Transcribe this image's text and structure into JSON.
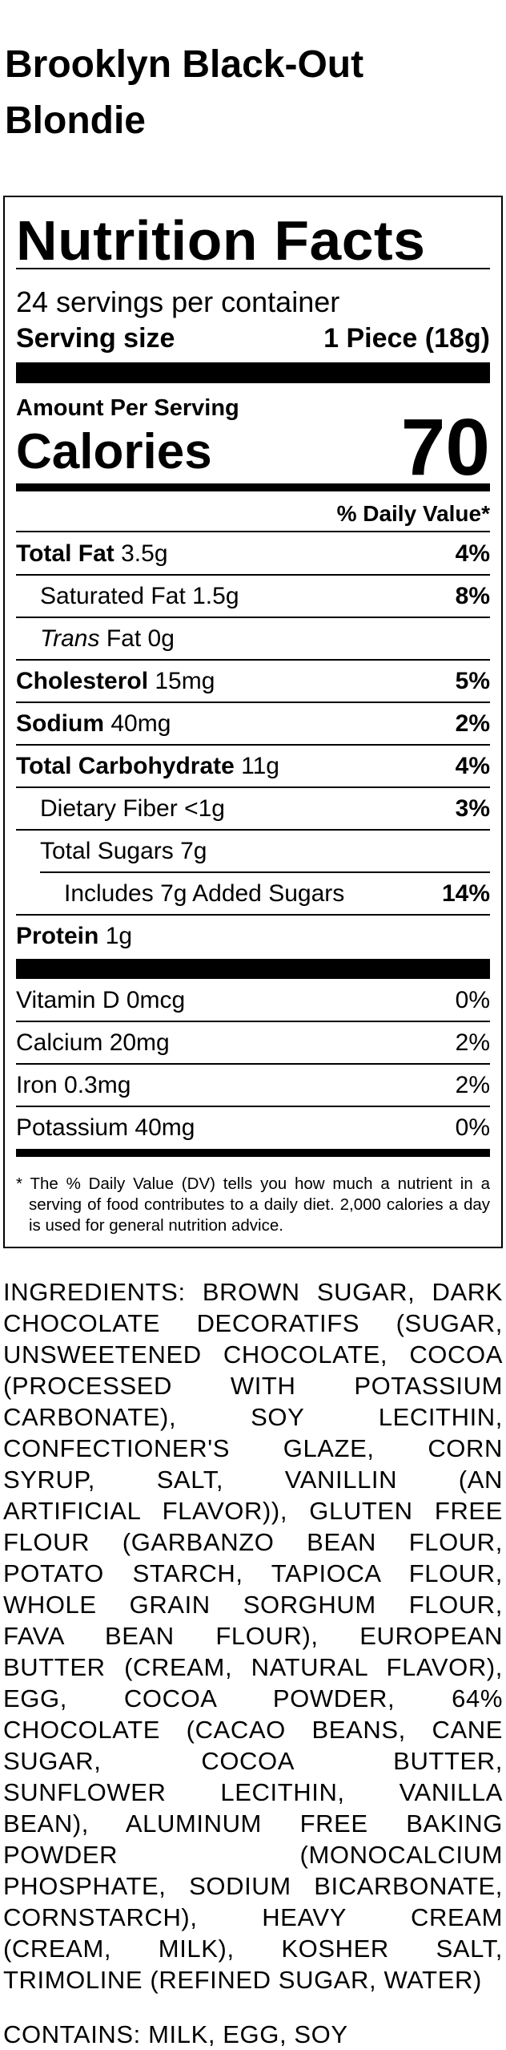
{
  "product": {
    "title_line1": "Brooklyn Black-Out",
    "title_line2": "Blondie"
  },
  "label": {
    "heading": "Nutrition Facts",
    "servings_per_container": "24 servings per container",
    "serving_size_label": "Serving size",
    "serving_size_value": "1 Piece (18g)",
    "amount_per_serving": "Amount Per Serving",
    "calories_label": "Calories",
    "calories_value": "70",
    "daily_value_header": "% Daily Value*",
    "nutrients": [
      {
        "name": "Total Fat",
        "amount": "3.5g",
        "dv": "4%"
      },
      {
        "name": "Saturated Fat",
        "amount": "1.5g",
        "dv": "8%"
      },
      {
        "name_italic": "Trans",
        "name": "Fat",
        "amount": "0g",
        "dv": ""
      },
      {
        "name": "Cholesterol",
        "amount": "15mg",
        "dv": "5%"
      },
      {
        "name": "Sodium",
        "amount": "40mg",
        "dv": "2%"
      },
      {
        "name": "Total Carbohydrate",
        "amount": "11g",
        "dv": "4%"
      },
      {
        "name": "Dietary Fiber",
        "amount": "<1g",
        "dv": "3%"
      },
      {
        "name": "Total Sugars",
        "amount": "7g",
        "dv": ""
      },
      {
        "name": "Includes 7g Added Sugars",
        "amount": "",
        "dv": "14%"
      },
      {
        "name": "Protein",
        "amount": "1g",
        "dv": ""
      }
    ],
    "vitamins": [
      {
        "name": "Vitamin D 0mcg",
        "dv": "0%"
      },
      {
        "name": "Calcium 20mg",
        "dv": "2%"
      },
      {
        "name": "Iron 0.3mg",
        "dv": "2%"
      },
      {
        "name": "Potassium 40mg",
        "dv": "0%"
      }
    ],
    "footnote": "* The % Daily Value (DV) tells you how much a nutrient in a serving of food contributes to a daily diet. 2,000 calories a day is used for general nutrition advice."
  },
  "ingredients": {
    "lines": [
      "INGREDIENTS: BROWN SUGAR, DARK",
      "CHOCOLATE DECORATIFS (SUGAR,",
      "UNSWEETENED CHOCOLATE, COCOA",
      "(PROCESSED WITH POTASSIUM",
      "CARBONATE), SOY LECITHIN,",
      "CONFECTIONER'S GLAZE, CORN",
      "SYRUP, SALT, VANILLIN (AN",
      "ARTIFICIAL FLAVOR)), GLUTEN FREE",
      "FLOUR (GARBANZO BEAN FLOUR,",
      "POTATO STARCH, TAPIOCA FLOUR,",
      "WHOLE GRAIN SORGHUM FLOUR,",
      "FAVA BEAN FLOUR), EUROPEAN",
      "BUTTER (CREAM, NATURAL FLAVOR),",
      "EGG, COCOA POWDER, 64%",
      "CHOCOLATE (CACAO BEANS, CANE",
      "SUGAR, COCOA BUTTER,",
      "SUNFLOWER LECITHIN, VANILLA",
      "BEAN), ALUMINUM FREE BAKING",
      "POWDER (MONOCALCIUM",
      "PHOSPHATE, SODIUM BICARBONATE,",
      "CORNSTARCH), HEAVY CREAM",
      "(CREAM, MILK), KOSHER SALT,",
      "TRIMOLINE (REFINED SUGAR, WATER)"
    ],
    "contains": "CONTAINS: MILK, EGG, SOY"
  }
}
